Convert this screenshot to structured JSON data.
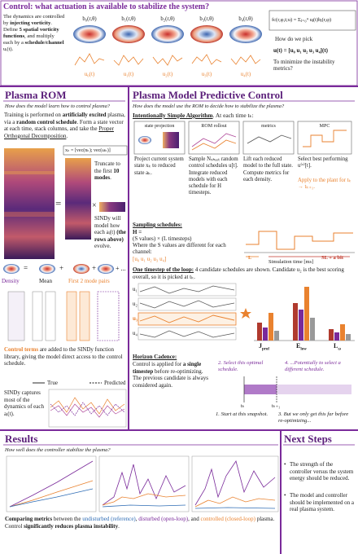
{
  "banner": {
    "title": "Control: what actuation is available to stabilize the system?",
    "intro": [
      "The dynamics are controlled by ",
      "injecting vorticity",
      ". Define ",
      "5 spatial vorticity functions",
      ", and multiply each by a ",
      "schedule/channel",
      " uᵢ(t)."
    ],
    "basis": [
      "b₀(r,θ)",
      "b₁(r,θ)",
      "b₂(r,θ)",
      "b₃(r,θ)",
      "b₄(r,θ)"
    ],
    "channels": [
      "u₀(t)",
      "u₁(t)",
      "u₂(t)",
      "u₃(t)",
      "u₄(t)"
    ],
    "formula": "fc(r,φ,t;u) = Σⱼ₌₀⁴ uⱼ(t)bⱼ(r,φ)",
    "question": "How do we pick",
    "pick": "u(t) = [u₀ u₁ u₂ u₃ u₄](t)",
    "question2": "To minimize the instability metrics?"
  },
  "rom": {
    "title": "Plasma ROM",
    "subtitle": "How does the model learn how to control plasma?",
    "training": [
      "Training is performed on ",
      "artificially excited",
      " plasma, via a ",
      "random control schedule",
      ". Form a state vector at each time, stack columns, and take the ",
      "Proper Orthogonal Decomposition",
      "."
    ],
    "state_eq": "xₖ = [vec(nₖ); vec(ωₖ)]",
    "truncate": [
      "Truncate to the first ",
      "10 modes",
      "."
    ],
    "sindy_model": [
      "SINDy will model how each aᵢ(t) ",
      "(the rows above)",
      " evolve."
    ],
    "operators": [
      "=",
      "×",
      "=",
      "+",
      "+",
      "+ ..."
    ],
    "modes": [
      "Density",
      "Mean",
      "First 2 mode pairs"
    ],
    "control_terms": [
      "Control terms",
      " are added to the SINDy function library, giving the model direct access to the control schedule."
    ],
    "legend": [
      "True",
      "Predicted"
    ],
    "sindy_result": "SINDy captures most of the dynamics of each aᵢ(t)."
  },
  "mpc": {
    "title": "Plasma Model Predictive Control",
    "subtitle": "How does the model use the ROM to decide how to stabilize the plasma?",
    "algorithm": [
      "Intentionally Simple Algorithm",
      ". At each time tₖ:"
    ],
    "panels": [
      "state projection",
      "ROM rollout",
      "metrics",
      "MPC"
    ],
    "steps": [
      "Project current system state xₖ to reduced state aₖ.",
      "Sample Nₛₕₒₒₜ random control schedules u[t]. Integrate reduced models with each schedule for H timesteps.",
      "Lift each reduced model to the full state. Compute metrics for each density.",
      "Select best performing u⁽ᵒ⁾[t]."
    ],
    "apply": "Apply to the plant for tₖ → tₖ₊₁.",
    "sampling": {
      "heading": "Sampling schedules:",
      "eq": "H =",
      "eq2": "(S values) × (L timesteps)",
      "note": "Where the S values are different for each channel:",
      "channels": "[u₀ u₁ u₂ u₃ u₄]",
      "labels": [
        "L",
        "SL + a bit"
      ],
      "xlabel": "Simulation time [ms]"
    },
    "loop": {
      "heading": "One timestep of the loop:",
      "text": " 4 candidate schedules are shown. Candidate u₂ is the best scoring overall, so it is picked at tₖ.",
      "candidates": [
        "u₁",
        "u₂",
        "u₃",
        "u₄"
      ],
      "metrics": [
        {
          "symbol": "J",
          "sub": "prof"
        },
        {
          "symbol": "E",
          "sub": "low"
        },
        {
          "symbol": "L",
          "sub": "ω"
        }
      ]
    },
    "horizon": {
      "heading": "Horizon Cadence:",
      "text": [
        " Control is applied for ",
        "a single timestep",
        " before re-optimizing. The previous candidate is always considered again."
      ],
      "notes": [
        "2. Select this optimal schedule.",
        "4. ...Potentially to select a different schedule.",
        "1. Start at this snapshot.",
        "3. But we only get this far before re-optimizing..."
      ],
      "times": [
        "tₖ",
        "tₖ₊₁"
      ]
    }
  },
  "results": {
    "title": "Results",
    "subtitle": "How well does the controller stabilize the plasma?",
    "summary": [
      "Comparing metrics",
      " between the ",
      "undisturbed (reference)",
      ", ",
      "disturbed (open-loop)",
      ", and ",
      "controlled (closed-loop)",
      " plasma. Control ",
      "significantly reduces plasma instability",
      "."
    ]
  },
  "next_steps": {
    "title": "Next Steps",
    "items": [
      "The strength of the controller versus the system energy should be reduced.",
      "The model and controller should be implemented on a real plasma system."
    ]
  }
}
